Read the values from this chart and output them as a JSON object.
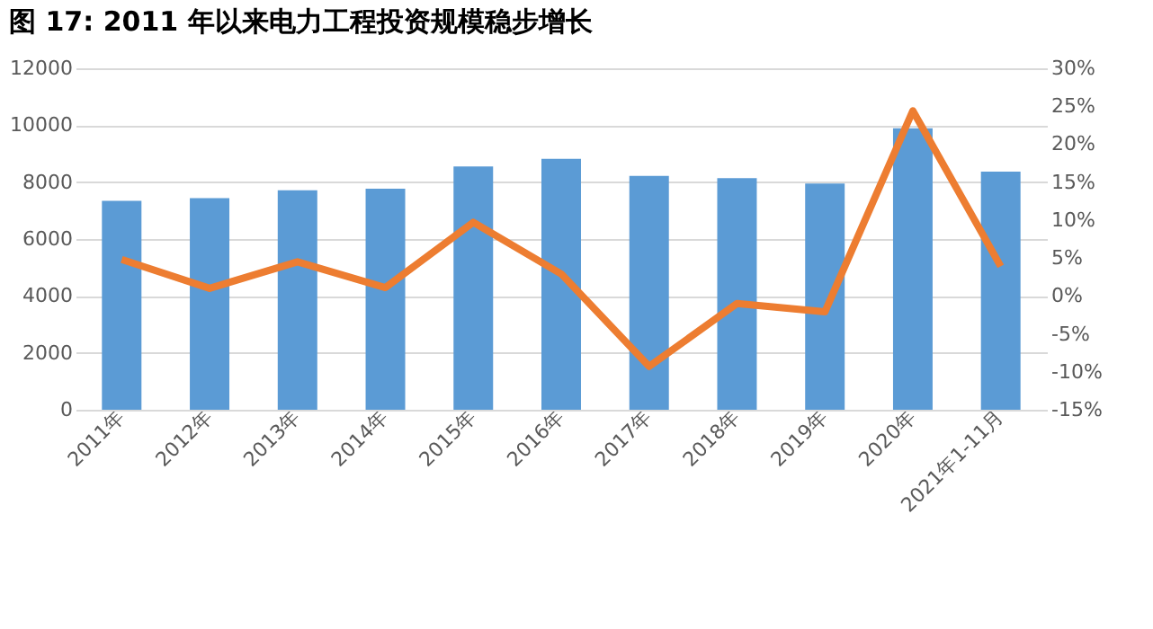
{
  "chart_data": {
    "type": "bar",
    "title": "图 17:  2011 年以来电力工程投资规模稳步增长",
    "categories": [
      "2011年",
      "2012年",
      "2013年",
      "2014年",
      "2015年",
      "2016年",
      "2017年",
      "2018年",
      "2019年",
      "2020年",
      "2021年1-11月"
    ],
    "series": [
      {
        "color": "#5b9bd5",
        "values": [
          7340,
          7440,
          7710,
          7770,
          8550,
          8820,
          8220,
          8140,
          7950,
          9890,
          8370
        ]
      },
      {
        "type": "line",
        "axis": "y2",
        "color": "#ed7d31",
        "values": [
          4.8,
          1.0,
          4.5,
          1.1,
          9.7,
          2.9,
          -9.3,
          -1.0,
          -2.1,
          24.4,
          3.9
        ]
      }
    ],
    "ylim": [
      0,
      12000
    ],
    "yticks": [
      0,
      2000,
      4000,
      6000,
      8000,
      10000,
      12000
    ],
    "y2lim": [
      -15,
      30
    ],
    "y2ticks": [
      {
        "value": -15,
        "label": "-15%"
      },
      {
        "value": -10,
        "label": "-10%"
      },
      {
        "value": -5,
        "label": "-5%"
      },
      {
        "value": 0,
        "label": "0%"
      },
      {
        "value": 5,
        "label": "5%"
      },
      {
        "value": 10,
        "label": "10%"
      },
      {
        "value": 15,
        "label": "15%"
      },
      {
        "value": 20,
        "label": "20%"
      },
      {
        "value": 25,
        "label": "25%"
      },
      {
        "value": 30,
        "label": "30%"
      }
    ],
    "grid": "y",
    "marker": "none",
    "line_style": "solid"
  }
}
